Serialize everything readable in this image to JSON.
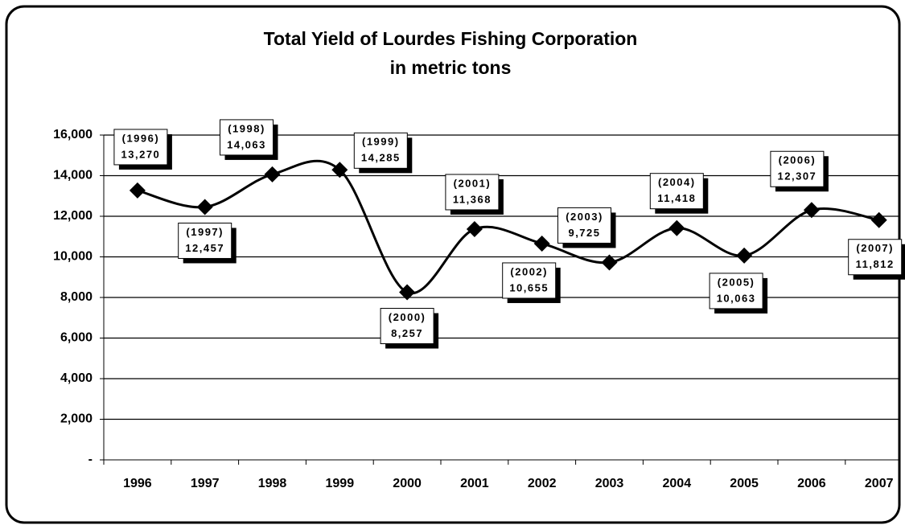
{
  "chart_data": {
    "type": "line",
    "title": "Total Yield of Lourdes Fishing Corporation",
    "subtitle": "in metric tons",
    "categories": [
      "1996",
      "1997",
      "1998",
      "1999",
      "2000",
      "2001",
      "2002",
      "2003",
      "2004",
      "2005",
      "2006",
      "2007"
    ],
    "series": [
      {
        "color": "#000000",
        "values": [
          13270,
          12457,
          14063,
          14285,
          8257,
          11368,
          10655,
          9725,
          11418,
          10063,
          12307,
          11812
        ],
        "value_labels": [
          "13,270",
          "12,457",
          "14,063",
          "14,285",
          "8,257",
          "11,368",
          "10,655",
          "9,725",
          "11,418",
          "10,063",
          "12,307",
          "11,812"
        ],
        "label_years": [
          "(1996)",
          "(1997)",
          "(1998)",
          "(1999)",
          "(2000)",
          "(2001)",
          "(2002)",
          "(2003)",
          "(2004)",
          "(2005)",
          "(2006)",
          "(2007)"
        ]
      }
    ],
    "ylim": [
      0,
      16000
    ],
    "yticks": [
      {
        "value": 0,
        "label": "-"
      },
      {
        "value": 2000,
        "label": "2,000"
      },
      {
        "value": 4000,
        "label": "4,000"
      },
      {
        "value": 6000,
        "label": "6,000"
      },
      {
        "value": 8000,
        "label": "8,000"
      },
      {
        "value": 10000,
        "label": "10,000"
      },
      {
        "value": 12000,
        "label": "12,000"
      },
      {
        "value": 14000,
        "label": "14,000"
      },
      {
        "value": 16000,
        "label": "16,000"
      }
    ],
    "grid": true
  }
}
